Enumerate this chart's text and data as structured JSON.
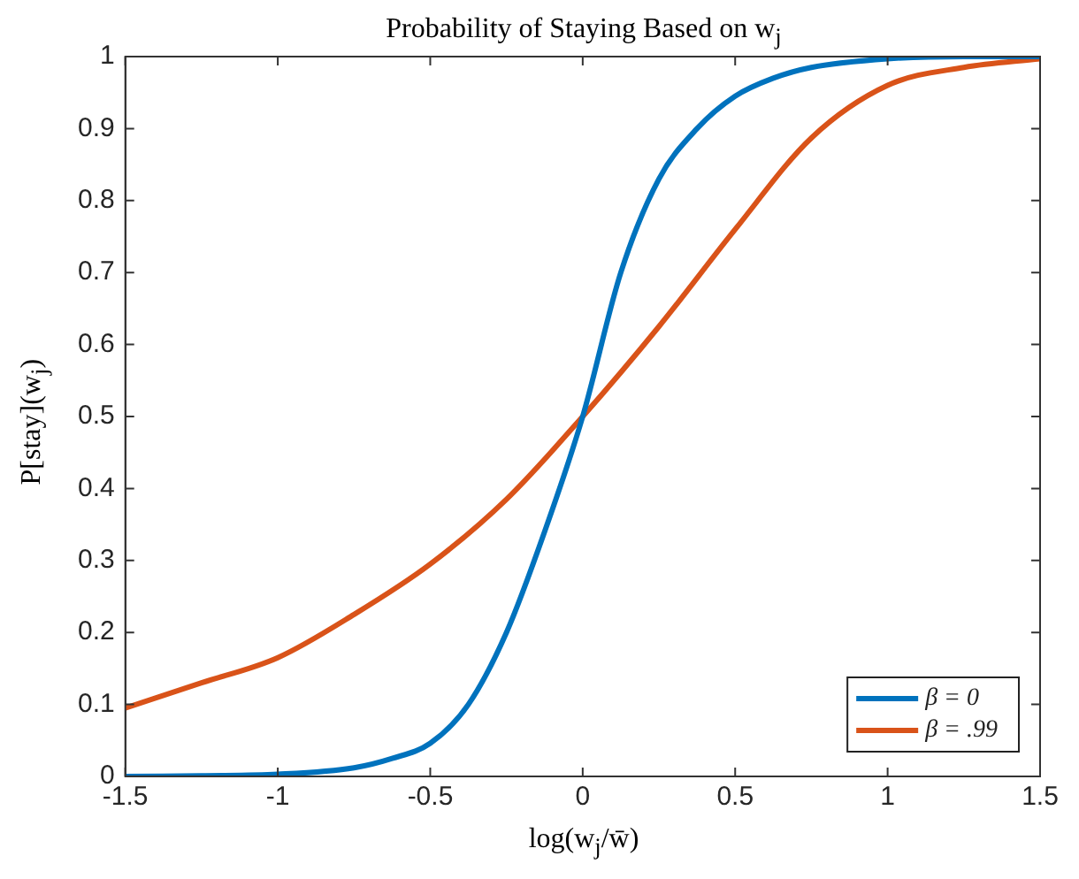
{
  "chart_data": {
    "type": "line",
    "title": "Probability of Staying Based on w$_{j}$",
    "xlabel": "log(w$_{j}$/w̄)",
    "ylabel": "P[stay](w$_{j}$)",
    "xlim": [
      -1.5,
      1.5
    ],
    "xticks": [
      -1.5,
      -1,
      -0.5,
      0,
      0.5,
      1,
      1.5
    ],
    "ylim": [
      0,
      1
    ],
    "yticks": [
      0,
      0.1,
      0.2,
      0.3,
      0.4,
      0.5,
      0.6,
      0.7,
      0.8,
      0.9,
      1
    ],
    "grid": false,
    "legend": "bottom right",
    "marker": "none",
    "line_style": "solid",
    "series": [
      {
        "name": "β = 0",
        "color": "#0072bd",
        "x": [
          -1.5,
          -1.25,
          -1,
          -0.75,
          -0.625,
          -0.5,
          -0.375,
          -0.25,
          -0.125,
          0,
          0.125,
          0.25,
          0.375,
          0.5,
          0.625,
          0.75,
          1,
          1.25,
          1.5
        ],
        "values": [
          0,
          0.001,
          0.003,
          0.012,
          0.025,
          0.046,
          0.1,
          0.2,
          0.34,
          0.5,
          0.7,
          0.83,
          0.9,
          0.945,
          0.97,
          0.985,
          0.997,
          1,
          1
        ]
      },
      {
        "name": "β = .99",
        "color": "#d95319",
        "x": [
          -1.5,
          -1.25,
          -1,
          -0.75,
          -0.5,
          -0.25,
          0,
          0.25,
          0.5,
          0.75,
          1,
          1.25,
          1.5
        ],
        "values": [
          0.095,
          0.13,
          0.165,
          0.225,
          0.295,
          0.385,
          0.5,
          0.625,
          0.76,
          0.887,
          0.96,
          0.985,
          0.997
        ]
      }
    ]
  }
}
